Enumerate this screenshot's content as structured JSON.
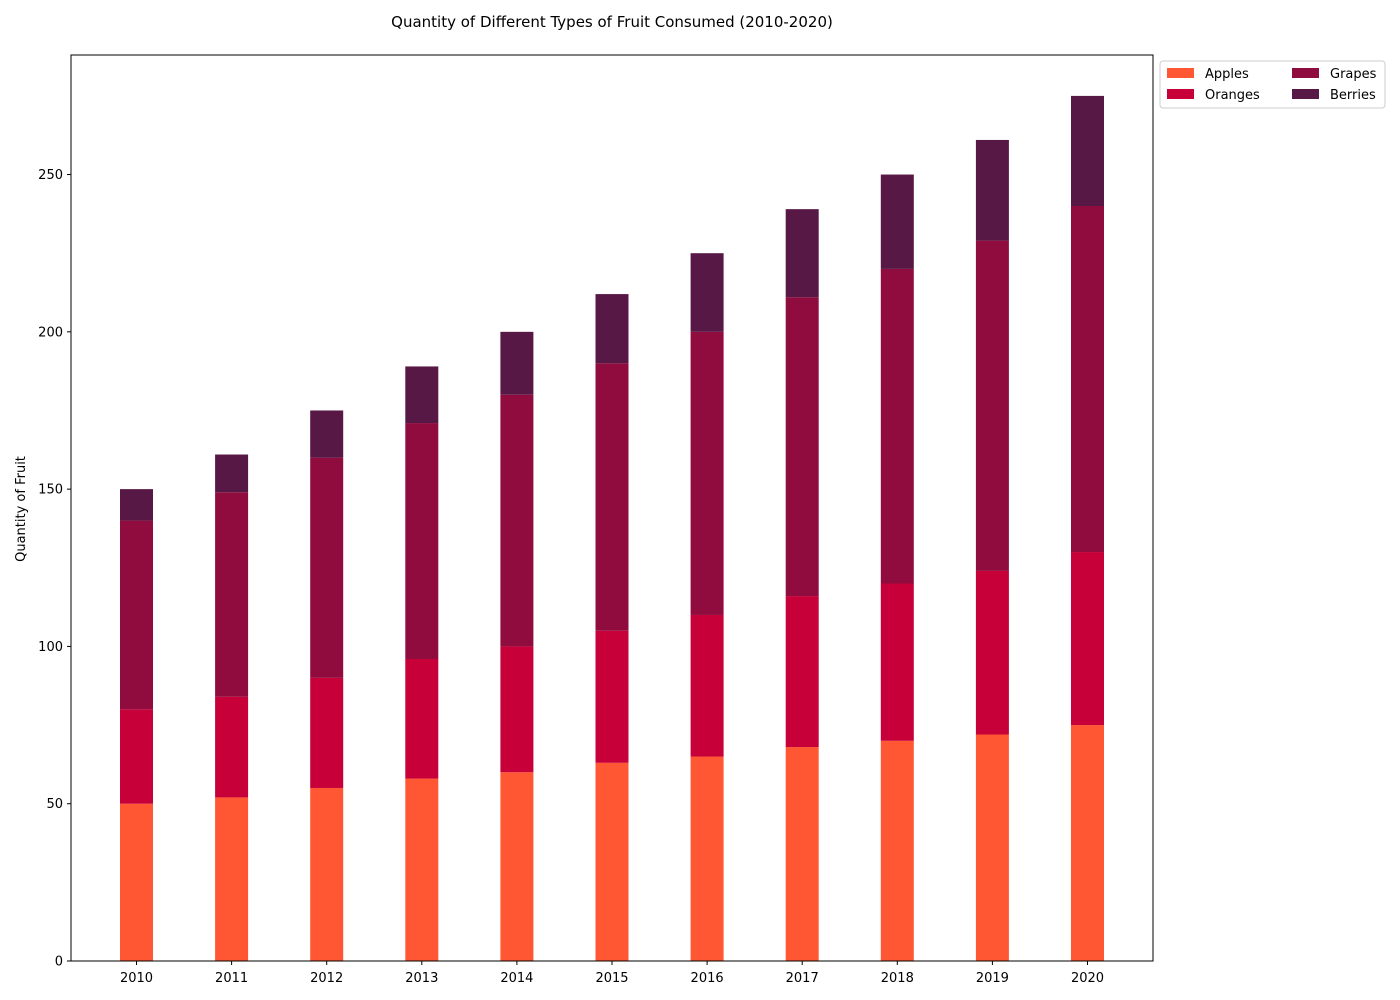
{
  "chart_data": {
    "type": "bar",
    "stacked": true,
    "title": "Quantity of Different Types of Fruit Consumed (2010-2020)",
    "xlabel": "",
    "ylabel": "Quantity of Fruit",
    "categories": [
      "2010",
      "2011",
      "2012",
      "2013",
      "2014",
      "2015",
      "2016",
      "2017",
      "2018",
      "2019",
      "2020"
    ],
    "series": [
      {
        "name": "Apples",
        "color": "#ff5733",
        "values": [
          50,
          52,
          55,
          58,
          60,
          63,
          65,
          68,
          70,
          72,
          75
        ]
      },
      {
        "name": "Oranges",
        "color": "#c70039",
        "values": [
          30,
          32,
          35,
          38,
          40,
          42,
          45,
          48,
          50,
          52,
          55
        ]
      },
      {
        "name": "Grapes",
        "color": "#900c3f",
        "values": [
          60,
          65,
          70,
          75,
          80,
          85,
          90,
          95,
          100,
          105,
          110
        ]
      },
      {
        "name": "Berries",
        "color": "#581845",
        "values": [
          10,
          12,
          15,
          18,
          20,
          22,
          25,
          28,
          30,
          32,
          35
        ]
      }
    ],
    "ylim": [
      0,
      288
    ],
    "yticks": [
      0,
      50,
      100,
      150,
      200,
      250
    ],
    "grid": false,
    "legend": {
      "placement": "outside top-right",
      "columns": 2
    }
  }
}
